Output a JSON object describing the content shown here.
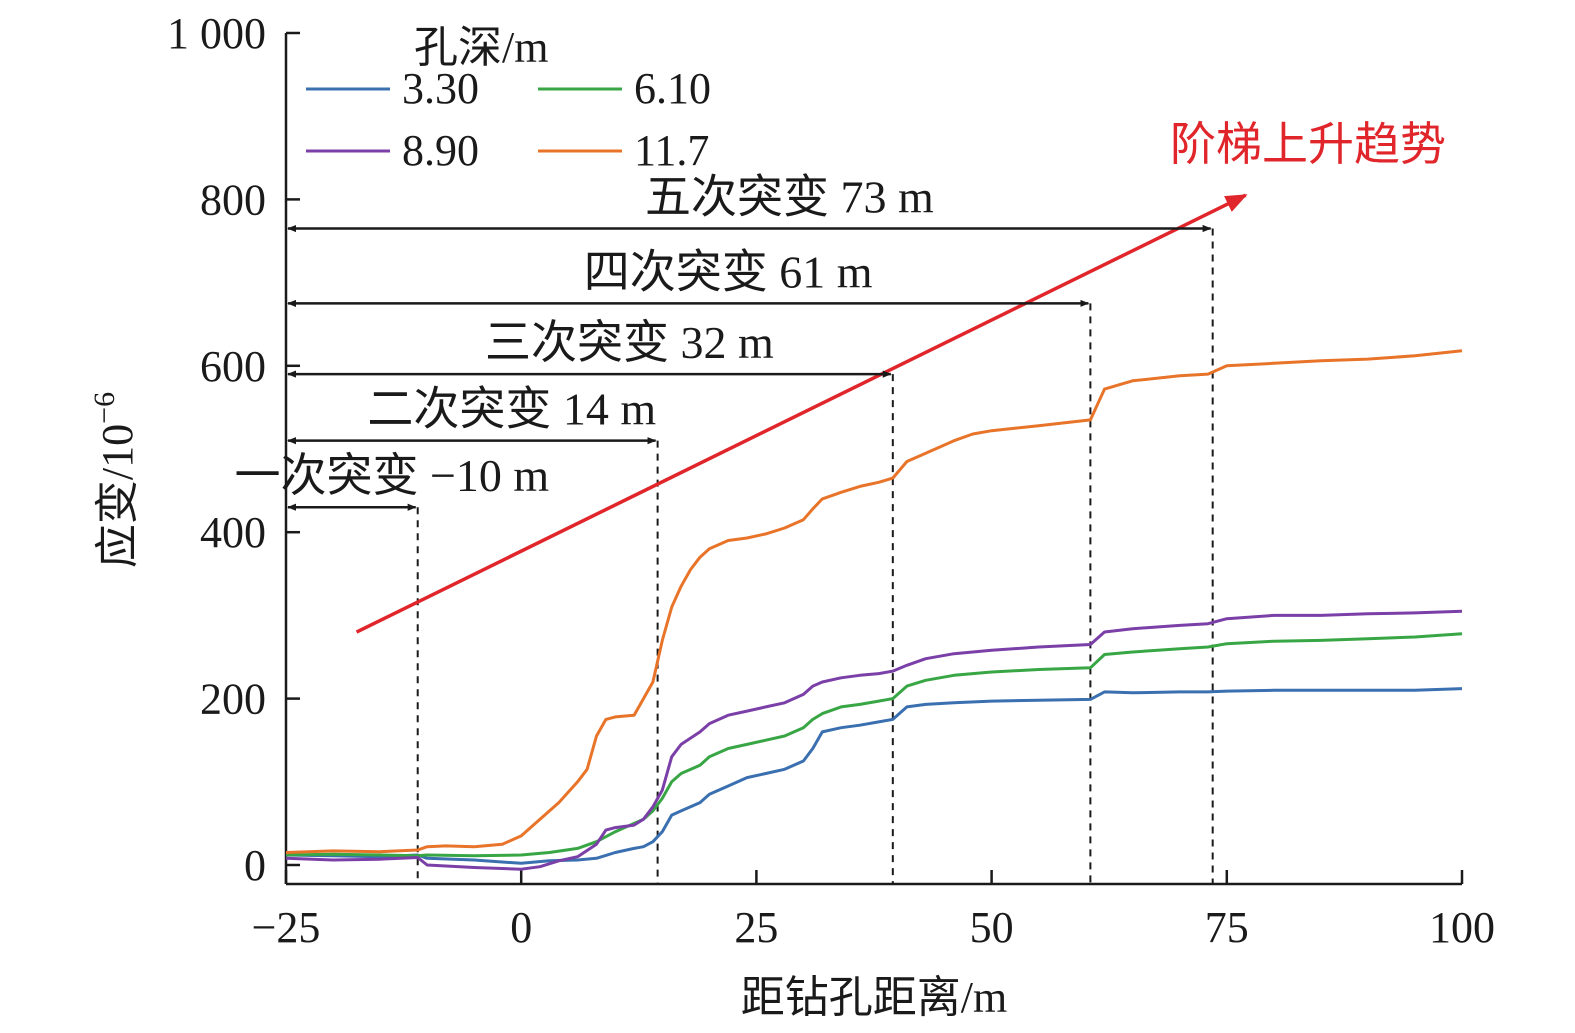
{
  "chart_data": {
    "type": "line",
    "xlabel": "距钻孔距离/m",
    "ylabel": "应变/10",
    "ylabel_exponent": "−6",
    "xlim": [
      -25,
      100
    ],
    "ylim": [
      0,
      1000
    ],
    "x_ticks": [
      -25,
      0,
      25,
      50,
      75,
      100
    ],
    "x_tick_labels": [
      "−25",
      "0",
      "25",
      "50",
      "75",
      "100"
    ],
    "y_ticks": [
      0,
      200,
      400,
      600,
      800,
      1000
    ],
    "y_tick_labels": [
      "0",
      "200",
      "400",
      "600",
      "800",
      "1 000"
    ],
    "grid": false,
    "legend": {
      "title": "孔深/m",
      "placement": "top-left"
    },
    "series": [
      {
        "name": "3.30",
        "color": "#3a6fb0",
        "points": [
          [
            -25,
            12
          ],
          [
            -20,
            11
          ],
          [
            -15,
            10
          ],
          [
            -11,
            12
          ],
          [
            -10,
            8
          ],
          [
            -5,
            6
          ],
          [
            0,
            2
          ],
          [
            3,
            5
          ],
          [
            6,
            6
          ],
          [
            8,
            8
          ],
          [
            10,
            15
          ],
          [
            12,
            20
          ],
          [
            13,
            22
          ],
          [
            14,
            28
          ],
          [
            15,
            40
          ],
          [
            16,
            60
          ],
          [
            17,
            65
          ],
          [
            19,
            75
          ],
          [
            20,
            85
          ],
          [
            22,
            95
          ],
          [
            24,
            105
          ],
          [
            26,
            110
          ],
          [
            28,
            115
          ],
          [
            30,
            125
          ],
          [
            31,
            140
          ],
          [
            32,
            160
          ],
          [
            34,
            165
          ],
          [
            36,
            168
          ],
          [
            38,
            172
          ],
          [
            39.5,
            175
          ],
          [
            41,
            190
          ],
          [
            43,
            193
          ],
          [
            46,
            195
          ],
          [
            50,
            197
          ],
          [
            55,
            198
          ],
          [
            60.5,
            199
          ],
          [
            62,
            208
          ],
          [
            65,
            207
          ],
          [
            70,
            208
          ],
          [
            73,
            208
          ],
          [
            75,
            209
          ],
          [
            80,
            210
          ],
          [
            85,
            210
          ],
          [
            90,
            210
          ],
          [
            95,
            210
          ],
          [
            100,
            212
          ]
        ]
      },
      {
        "name": "6.10",
        "color": "#39a646",
        "points": [
          [
            -25,
            12
          ],
          [
            -20,
            13
          ],
          [
            -15,
            12
          ],
          [
            -11,
            11
          ],
          [
            -10,
            12
          ],
          [
            -5,
            11
          ],
          [
            0,
            12
          ],
          [
            3,
            15
          ],
          [
            6,
            20
          ],
          [
            8,
            28
          ],
          [
            10,
            40
          ],
          [
            12,
            50
          ],
          [
            13,
            55
          ],
          [
            14,
            65
          ],
          [
            15,
            80
          ],
          [
            16,
            100
          ],
          [
            17,
            110
          ],
          [
            19,
            120
          ],
          [
            20,
            130
          ],
          [
            22,
            140
          ],
          [
            24,
            145
          ],
          [
            26,
            150
          ],
          [
            28,
            155
          ],
          [
            30,
            165
          ],
          [
            31,
            175
          ],
          [
            32,
            182
          ],
          [
            34,
            190
          ],
          [
            36,
            193
          ],
          [
            38,
            197
          ],
          [
            39.5,
            200
          ],
          [
            41,
            215
          ],
          [
            43,
            222
          ],
          [
            46,
            228
          ],
          [
            50,
            232
          ],
          [
            55,
            235
          ],
          [
            60.5,
            237
          ],
          [
            62,
            253
          ],
          [
            65,
            256
          ],
          [
            70,
            260
          ],
          [
            73,
            262
          ],
          [
            75,
            266
          ],
          [
            80,
            269
          ],
          [
            85,
            270
          ],
          [
            90,
            272
          ],
          [
            95,
            274
          ],
          [
            100,
            278
          ]
        ]
      },
      {
        "name": "8.90",
        "color": "#7b3fa8",
        "points": [
          [
            -25,
            8
          ],
          [
            -20,
            6
          ],
          [
            -15,
            7
          ],
          [
            -11,
            9
          ],
          [
            -10,
            0
          ],
          [
            -5,
            -3
          ],
          [
            0,
            -5
          ],
          [
            2,
            -2
          ],
          [
            4,
            5
          ],
          [
            6,
            10
          ],
          [
            8,
            25
          ],
          [
            9,
            42
          ],
          [
            10,
            45
          ],
          [
            12,
            48
          ],
          [
            13,
            55
          ],
          [
            14,
            70
          ],
          [
            15,
            90
          ],
          [
            16,
            130
          ],
          [
            17,
            145
          ],
          [
            19,
            160
          ],
          [
            20,
            170
          ],
          [
            22,
            180
          ],
          [
            24,
            185
          ],
          [
            26,
            190
          ],
          [
            28,
            195
          ],
          [
            30,
            205
          ],
          [
            31,
            215
          ],
          [
            32,
            220
          ],
          [
            34,
            225
          ],
          [
            36,
            228
          ],
          [
            38,
            230
          ],
          [
            39.5,
            233
          ],
          [
            41,
            240
          ],
          [
            43,
            248
          ],
          [
            46,
            254
          ],
          [
            50,
            258
          ],
          [
            55,
            262
          ],
          [
            60.5,
            265
          ],
          [
            62,
            280
          ],
          [
            65,
            284
          ],
          [
            70,
            288
          ],
          [
            73,
            290
          ],
          [
            75,
            296
          ],
          [
            80,
            300
          ],
          [
            85,
            300
          ],
          [
            90,
            302
          ],
          [
            95,
            303
          ],
          [
            100,
            305
          ]
        ]
      },
      {
        "name": "11.7",
        "color": "#e8742a",
        "points": [
          [
            -25,
            15
          ],
          [
            -20,
            17
          ],
          [
            -15,
            16
          ],
          [
            -11,
            18
          ],
          [
            -10,
            22
          ],
          [
            -8,
            23
          ],
          [
            -5,
            22
          ],
          [
            -2,
            25
          ],
          [
            0,
            35
          ],
          [
            2,
            55
          ],
          [
            4,
            75
          ],
          [
            6,
            100
          ],
          [
            7,
            115
          ],
          [
            8,
            155
          ],
          [
            9,
            175
          ],
          [
            10,
            178
          ],
          [
            12,
            180
          ],
          [
            13,
            200
          ],
          [
            14,
            220
          ],
          [
            15,
            270
          ],
          [
            16,
            310
          ],
          [
            17,
            335
          ],
          [
            18,
            355
          ],
          [
            19,
            370
          ],
          [
            20,
            380
          ],
          [
            22,
            390
          ],
          [
            24,
            393
          ],
          [
            26,
            398
          ],
          [
            28,
            405
          ],
          [
            30,
            415
          ],
          [
            31,
            428
          ],
          [
            32,
            440
          ],
          [
            34,
            448
          ],
          [
            36,
            455
          ],
          [
            38,
            460
          ],
          [
            39.5,
            465
          ],
          [
            41,
            485
          ],
          [
            43,
            495
          ],
          [
            46,
            510
          ],
          [
            48,
            518
          ],
          [
            50,
            522
          ],
          [
            55,
            528
          ],
          [
            60.5,
            535
          ],
          [
            62,
            572
          ],
          [
            65,
            582
          ],
          [
            70,
            588
          ],
          [
            73,
            590
          ],
          [
            75,
            600
          ],
          [
            80,
            603
          ],
          [
            85,
            606
          ],
          [
            90,
            608
          ],
          [
            95,
            612
          ],
          [
            100,
            618
          ]
        ]
      }
    ],
    "events": [
      {
        "label": "一次突变 −10 m",
        "x": -11,
        "arrow_y": 430
      },
      {
        "label": "二次突变 14 m",
        "x": 14.5,
        "arrow_y": 510
      },
      {
        "label": "三次突变 32 m",
        "x": 39.5,
        "arrow_y": 590
      },
      {
        "label": "四次突变 61 m",
        "x": 60.5,
        "arrow_y": 675
      },
      {
        "label": "五次突变 73 m",
        "x": 73.5,
        "arrow_y": 765
      }
    ],
    "trend": {
      "label": "阶梯上升趋势",
      "color": "#e0262b",
      "from": [
        -17.5,
        280
      ],
      "to": [
        77,
        805
      ]
    }
  }
}
